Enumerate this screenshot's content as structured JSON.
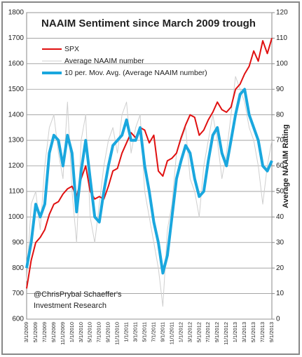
{
  "chart_data": {
    "type": "line",
    "title": "NAAIM Sentiment since March 2009 trough",
    "y2_label": "Average NAAIM Rating",
    "annotation": [
      "@ChrisPrybal  Schaeffer's",
      "Investment Research"
    ],
    "categories": [
      "3/1/2009",
      null,
      "5/1/2009",
      null,
      "7/1/2009",
      null,
      "9/1/2009",
      null,
      "11/1/2009",
      null,
      "1/1/2010",
      null,
      "3/1/2010",
      null,
      "5/1/2010",
      null,
      "7/1/2010",
      null,
      "9/1/2010",
      null,
      "11/1/2010",
      null,
      "1/1/2011",
      null,
      "3/1/2011",
      null,
      "5/1/2011",
      null,
      "7/1/2011",
      null,
      "9/1/2011",
      null,
      "11/1/2011",
      null,
      "1/1/2012",
      null,
      "3/1/2012",
      null,
      "5/1/2012",
      null,
      "7/1/2012",
      null,
      "9/1/2012",
      null,
      "11/1/2012",
      null,
      "1/1/2013",
      null,
      "3/1/2013",
      null,
      "5/1/2013",
      null,
      "7/1/2013",
      null,
      "9/1/2013"
    ],
    "series": [
      {
        "name": "SPX",
        "color": "#e01010",
        "width": 2,
        "axis": "y",
        "values": [
          720,
          830,
          900,
          920,
          950,
          1010,
          1050,
          1060,
          1090,
          1110,
          1120,
          1080,
          1150,
          1200,
          1100,
          1070,
          1080,
          1070,
          1120,
          1180,
          1190,
          1250,
          1290,
          1330,
          1310,
          1350,
          1340,
          1290,
          1320,
          1180,
          1160,
          1220,
          1230,
          1250,
          1310,
          1360,
          1400,
          1390,
          1320,
          1340,
          1380,
          1410,
          1450,
          1420,
          1410,
          1430,
          1500,
          1520,
          1560,
          1590,
          1650,
          1610,
          1690,
          1640,
          1700
        ]
      },
      {
        "name": "Average NAAIM number",
        "color": "#cfcfcf",
        "width": 1,
        "axis": "y2",
        "values": [
          15,
          45,
          50,
          35,
          60,
          75,
          80,
          65,
          55,
          85,
          50,
          30,
          70,
          80,
          40,
          30,
          45,
          60,
          70,
          75,
          65,
          80,
          85,
          65,
          75,
          80,
          50,
          40,
          30,
          20,
          5,
          35,
          45,
          65,
          70,
          75,
          55,
          50,
          40,
          60,
          70,
          80,
          70,
          55,
          65,
          80,
          95,
          90,
          85,
          75,
          70,
          60,
          45,
          60,
          70
        ]
      },
      {
        "name": "10 per. Mov. Avg. (Average NAAIM number)",
        "color": "#1aa7de",
        "width": 4,
        "axis": "y2",
        "values": [
          20,
          30,
          45,
          40,
          45,
          65,
          72,
          70,
          60,
          72,
          65,
          42,
          58,
          70,
          55,
          40,
          38,
          50,
          60,
          68,
          70,
          72,
          78,
          70,
          70,
          75,
          60,
          50,
          38,
          30,
          18,
          25,
          40,
          55,
          62,
          68,
          65,
          55,
          48,
          50,
          62,
          72,
          75,
          65,
          60,
          70,
          80,
          88,
          90,
          80,
          75,
          70,
          60,
          58,
          62
        ]
      }
    ],
    "ylim": [
      600,
      1800
    ],
    "yticks": [
      600,
      700,
      800,
      900,
      1000,
      1100,
      1200,
      1300,
      1400,
      1500,
      1600,
      1700,
      1800
    ],
    "y2lim": [
      0,
      120
    ],
    "y2ticks": [
      0,
      10,
      20,
      30,
      40,
      50,
      60,
      70,
      80,
      90,
      100,
      110,
      120
    ],
    "grid": true,
    "legend": "upper left"
  }
}
